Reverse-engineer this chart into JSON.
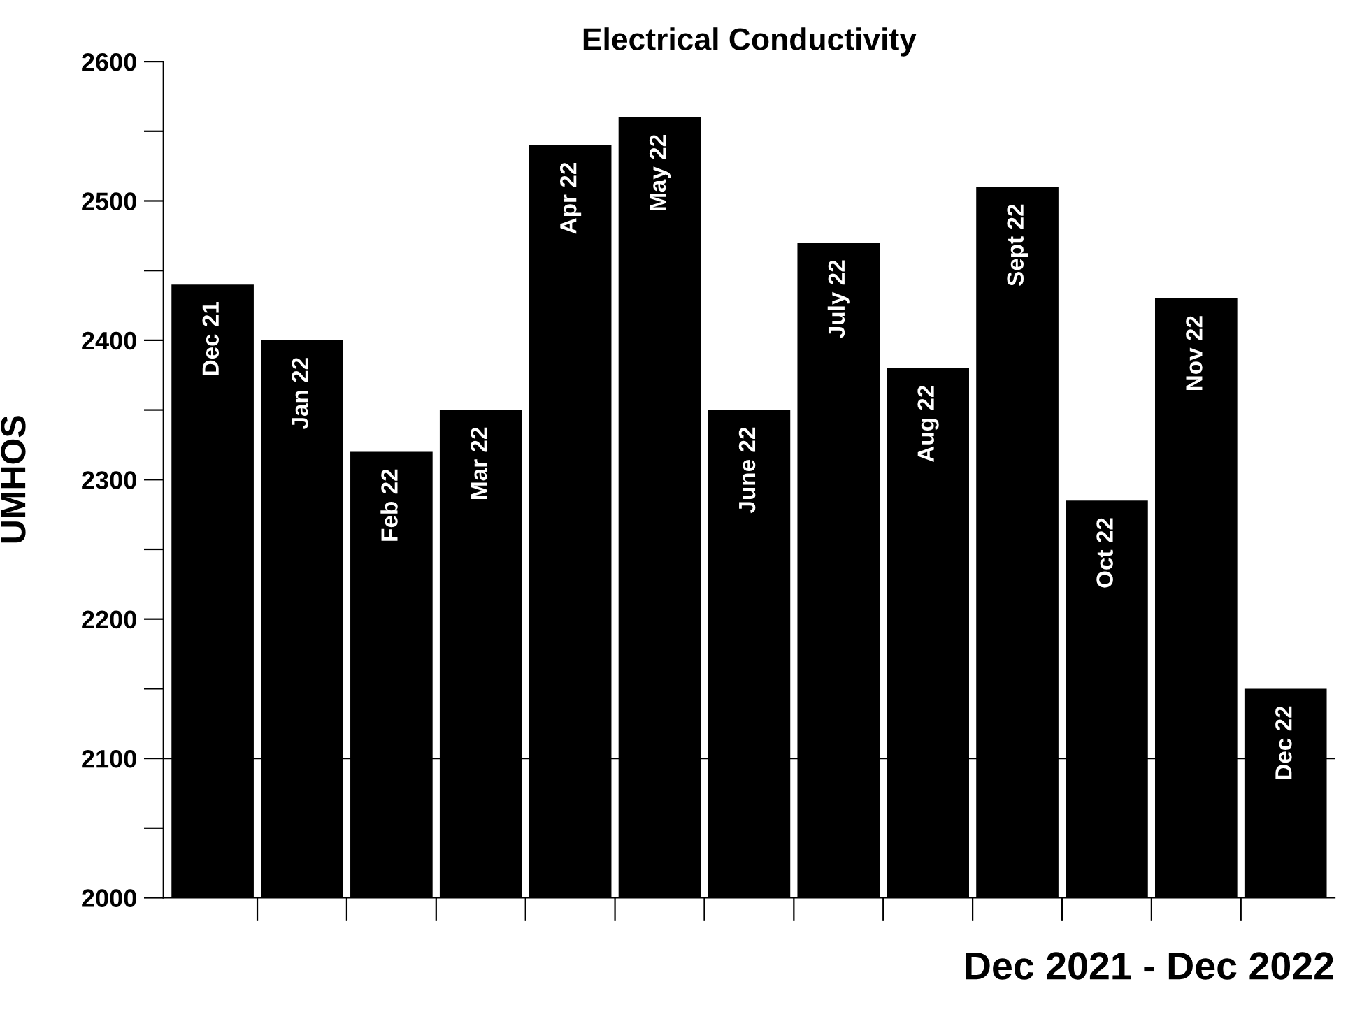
{
  "chart_data": {
    "type": "bar",
    "title": "Electrical Conductivity",
    "xlabel": "Dec 2021 - Dec 2022",
    "ylabel": "UMHOS",
    "categories": [
      "Dec 21",
      "Jan 22",
      "Feb 22",
      "Mar 22",
      "Apr 22",
      "May 22",
      "June 22",
      "July 22",
      "Aug 22",
      "Sept 22",
      "Oct 22",
      "Nov 22",
      "Dec 22"
    ],
    "values": [
      2440,
      2400,
      2320,
      2350,
      2540,
      2560,
      2350,
      2470,
      2380,
      2510,
      2285,
      2430,
      2150
    ],
    "color": "#000000",
    "ylim": [
      2000,
      2600
    ],
    "yticks": [
      2000,
      {
        "value": 2050,
        "label": null
      },
      2100,
      {
        "value": 2150,
        "label": null
      },
      2200,
      {
        "value": 2250,
        "label": null
      },
      2300,
      {
        "value": 2350,
        "label": null
      },
      2400,
      {
        "value": 2450,
        "label": null
      },
      2500,
      {
        "value": 2550,
        "label": null
      },
      2600
    ],
    "ref_lines": [
      {
        "axis": "y",
        "value": 2100,
        "color": "#000000"
      }
    ],
    "grid": false,
    "legend": false
  }
}
